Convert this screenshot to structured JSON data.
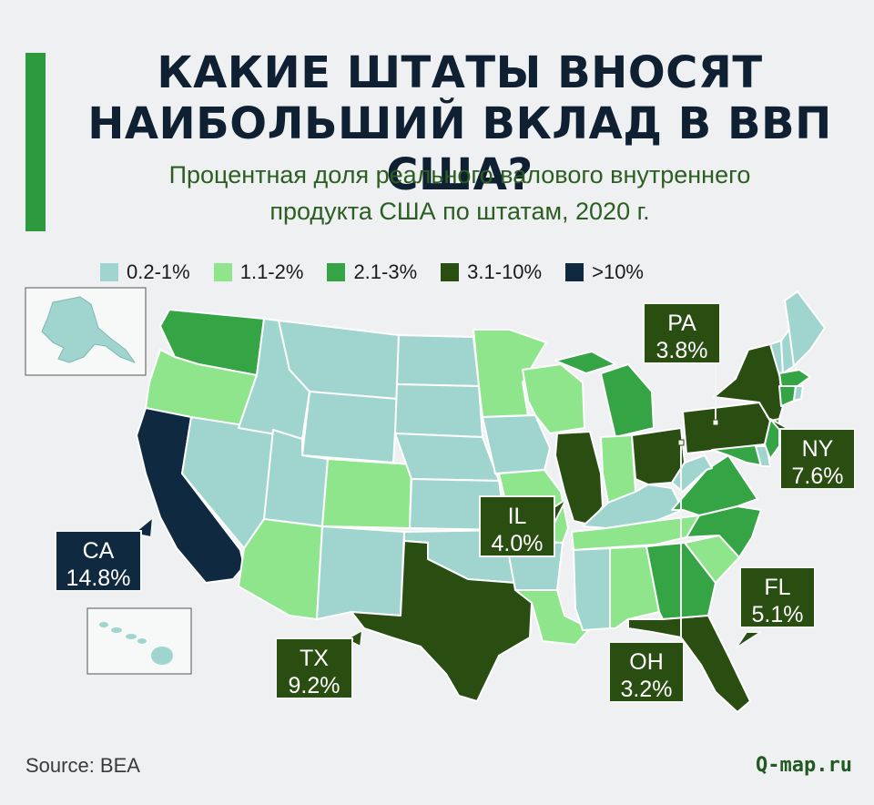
{
  "header": {
    "title_lines": [
      "КАКИЕ ШТАТЫ ВНОСЯТ",
      "НАИБОЛЬШИЙ ВКЛАД В ВВП США?"
    ],
    "subtitle_lines": [
      "Процентная доля реального валового внутреннего",
      "продукта США по штатам, 2020 г."
    ]
  },
  "legend": [
    {
      "label": "0.2-1%",
      "color": "#9fd4cf"
    },
    {
      "label": "1.1-2%",
      "color": "#8ee58c"
    },
    {
      "label": "2.1-3%",
      "color": "#34a444"
    },
    {
      "label": "3.1-10%",
      "color": "#2a4d12"
    },
    {
      "label": ">10%",
      "color": "#0f2a40"
    }
  ],
  "callouts": {
    "ca": {
      "code": "CA",
      "value": "14.8%",
      "share": 14.8
    },
    "tx": {
      "code": "TX",
      "value": "9.2%",
      "share": 9.2
    },
    "il": {
      "code": "IL",
      "value": "4.0%",
      "share": 4.0
    },
    "oh": {
      "code": "OH",
      "value": "3.2%",
      "share": 3.2
    },
    "pa": {
      "code": "PA",
      "value": "3.8%",
      "share": 3.8
    },
    "ny": {
      "code": "NY",
      "value": "7.6%",
      "share": 7.6
    },
    "fl": {
      "code": "FL",
      "value": "5.1%",
      "share": 5.1
    }
  },
  "footer": {
    "source": "Source: BEA",
    "site": "Q-map.ru"
  }
}
